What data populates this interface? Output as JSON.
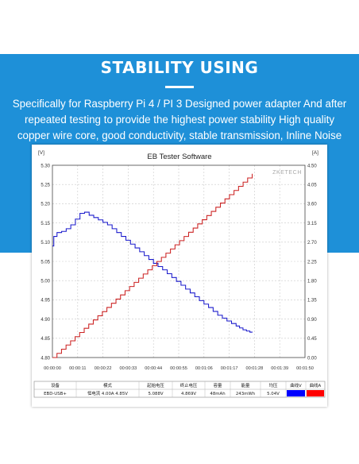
{
  "banner": {
    "title": "STABILITY USING",
    "description": "Specifically for Raspberry Pi 4 / PI 3 Designed power adapter And after repeated testing to provide the highest power stability High quality copper wire core, good conductivity, stable transmission, Inline Noise Filter."
  },
  "chart_data": {
    "type": "line",
    "title": "EB Tester Software",
    "watermark": "ZKETECH",
    "y_left_unit": "[V]",
    "y_right_unit": "[A]",
    "ylim_left": [
      4.8,
      5.3
    ],
    "ylim_right": [
      0,
      4.5
    ],
    "y_left_ticks": [
      "5.30",
      "5.25",
      "5.20",
      "5.15",
      "5.10",
      "5.05",
      "5.00",
      "4.95",
      "4.90",
      "4.85",
      "4.80"
    ],
    "y_right_ticks": [
      "4.50",
      "4.05",
      "3.60",
      "3.15",
      "2.70",
      "2.25",
      "1.80",
      "1.35",
      "0.90",
      "0.45",
      "0.00"
    ],
    "x_ticks": [
      "00:00:00",
      "00:00:11",
      "00:00:22",
      "00:00:33",
      "00:00:44",
      "00:00:55",
      "00:01:06",
      "00:01:17",
      "00:01:28",
      "00:01:39",
      "00:01:50"
    ],
    "xlim": [
      0,
      110
    ],
    "grid": true,
    "series": [
      {
        "axis": "left",
        "color": "#1a1acc",
        "points": [
          [
            0,
            5.09
          ],
          [
            0.6,
            5.115
          ],
          [
            2,
            5.125
          ],
          [
            4,
            5.128
          ],
          [
            6,
            5.135
          ],
          [
            8,
            5.145
          ],
          [
            10,
            5.16
          ],
          [
            12,
            5.175
          ],
          [
            14,
            5.178
          ],
          [
            16,
            5.17
          ],
          [
            20,
            5.158
          ],
          [
            24,
            5.145
          ],
          [
            28,
            5.125
          ],
          [
            32,
            5.105
          ],
          [
            36,
            5.085
          ],
          [
            40,
            5.065
          ],
          [
            44,
            5.045
          ],
          [
            48,
            5.028
          ],
          [
            52,
            5.008
          ],
          [
            56,
            4.988
          ],
          [
            60,
            4.968
          ],
          [
            64,
            4.948
          ],
          [
            68,
            4.93
          ],
          [
            72,
            4.91
          ],
          [
            76,
            4.895
          ],
          [
            80,
            4.882
          ],
          [
            83,
            4.872
          ],
          [
            86,
            4.866
          ],
          [
            87,
            4.865
          ]
        ]
      },
      {
        "axis": "right",
        "color": "#cc2222",
        "points": [
          [
            0,
            0
          ],
          [
            87,
            4.3
          ]
        ]
      }
    ]
  },
  "table": {
    "headers": [
      "设备",
      "模式",
      "起始电压",
      "终止电压",
      "容量",
      "能量",
      "均压",
      "曲线V",
      "曲线A"
    ],
    "row": [
      "EBD-USB+",
      "恒电流 4.00A 4.85V",
      "5.088V",
      "4.869V",
      "48mAh",
      "243mWh",
      "5.04V",
      "",
      ""
    ],
    "curve_v_color": "#0000ff",
    "curve_a_color": "#ff0000"
  }
}
